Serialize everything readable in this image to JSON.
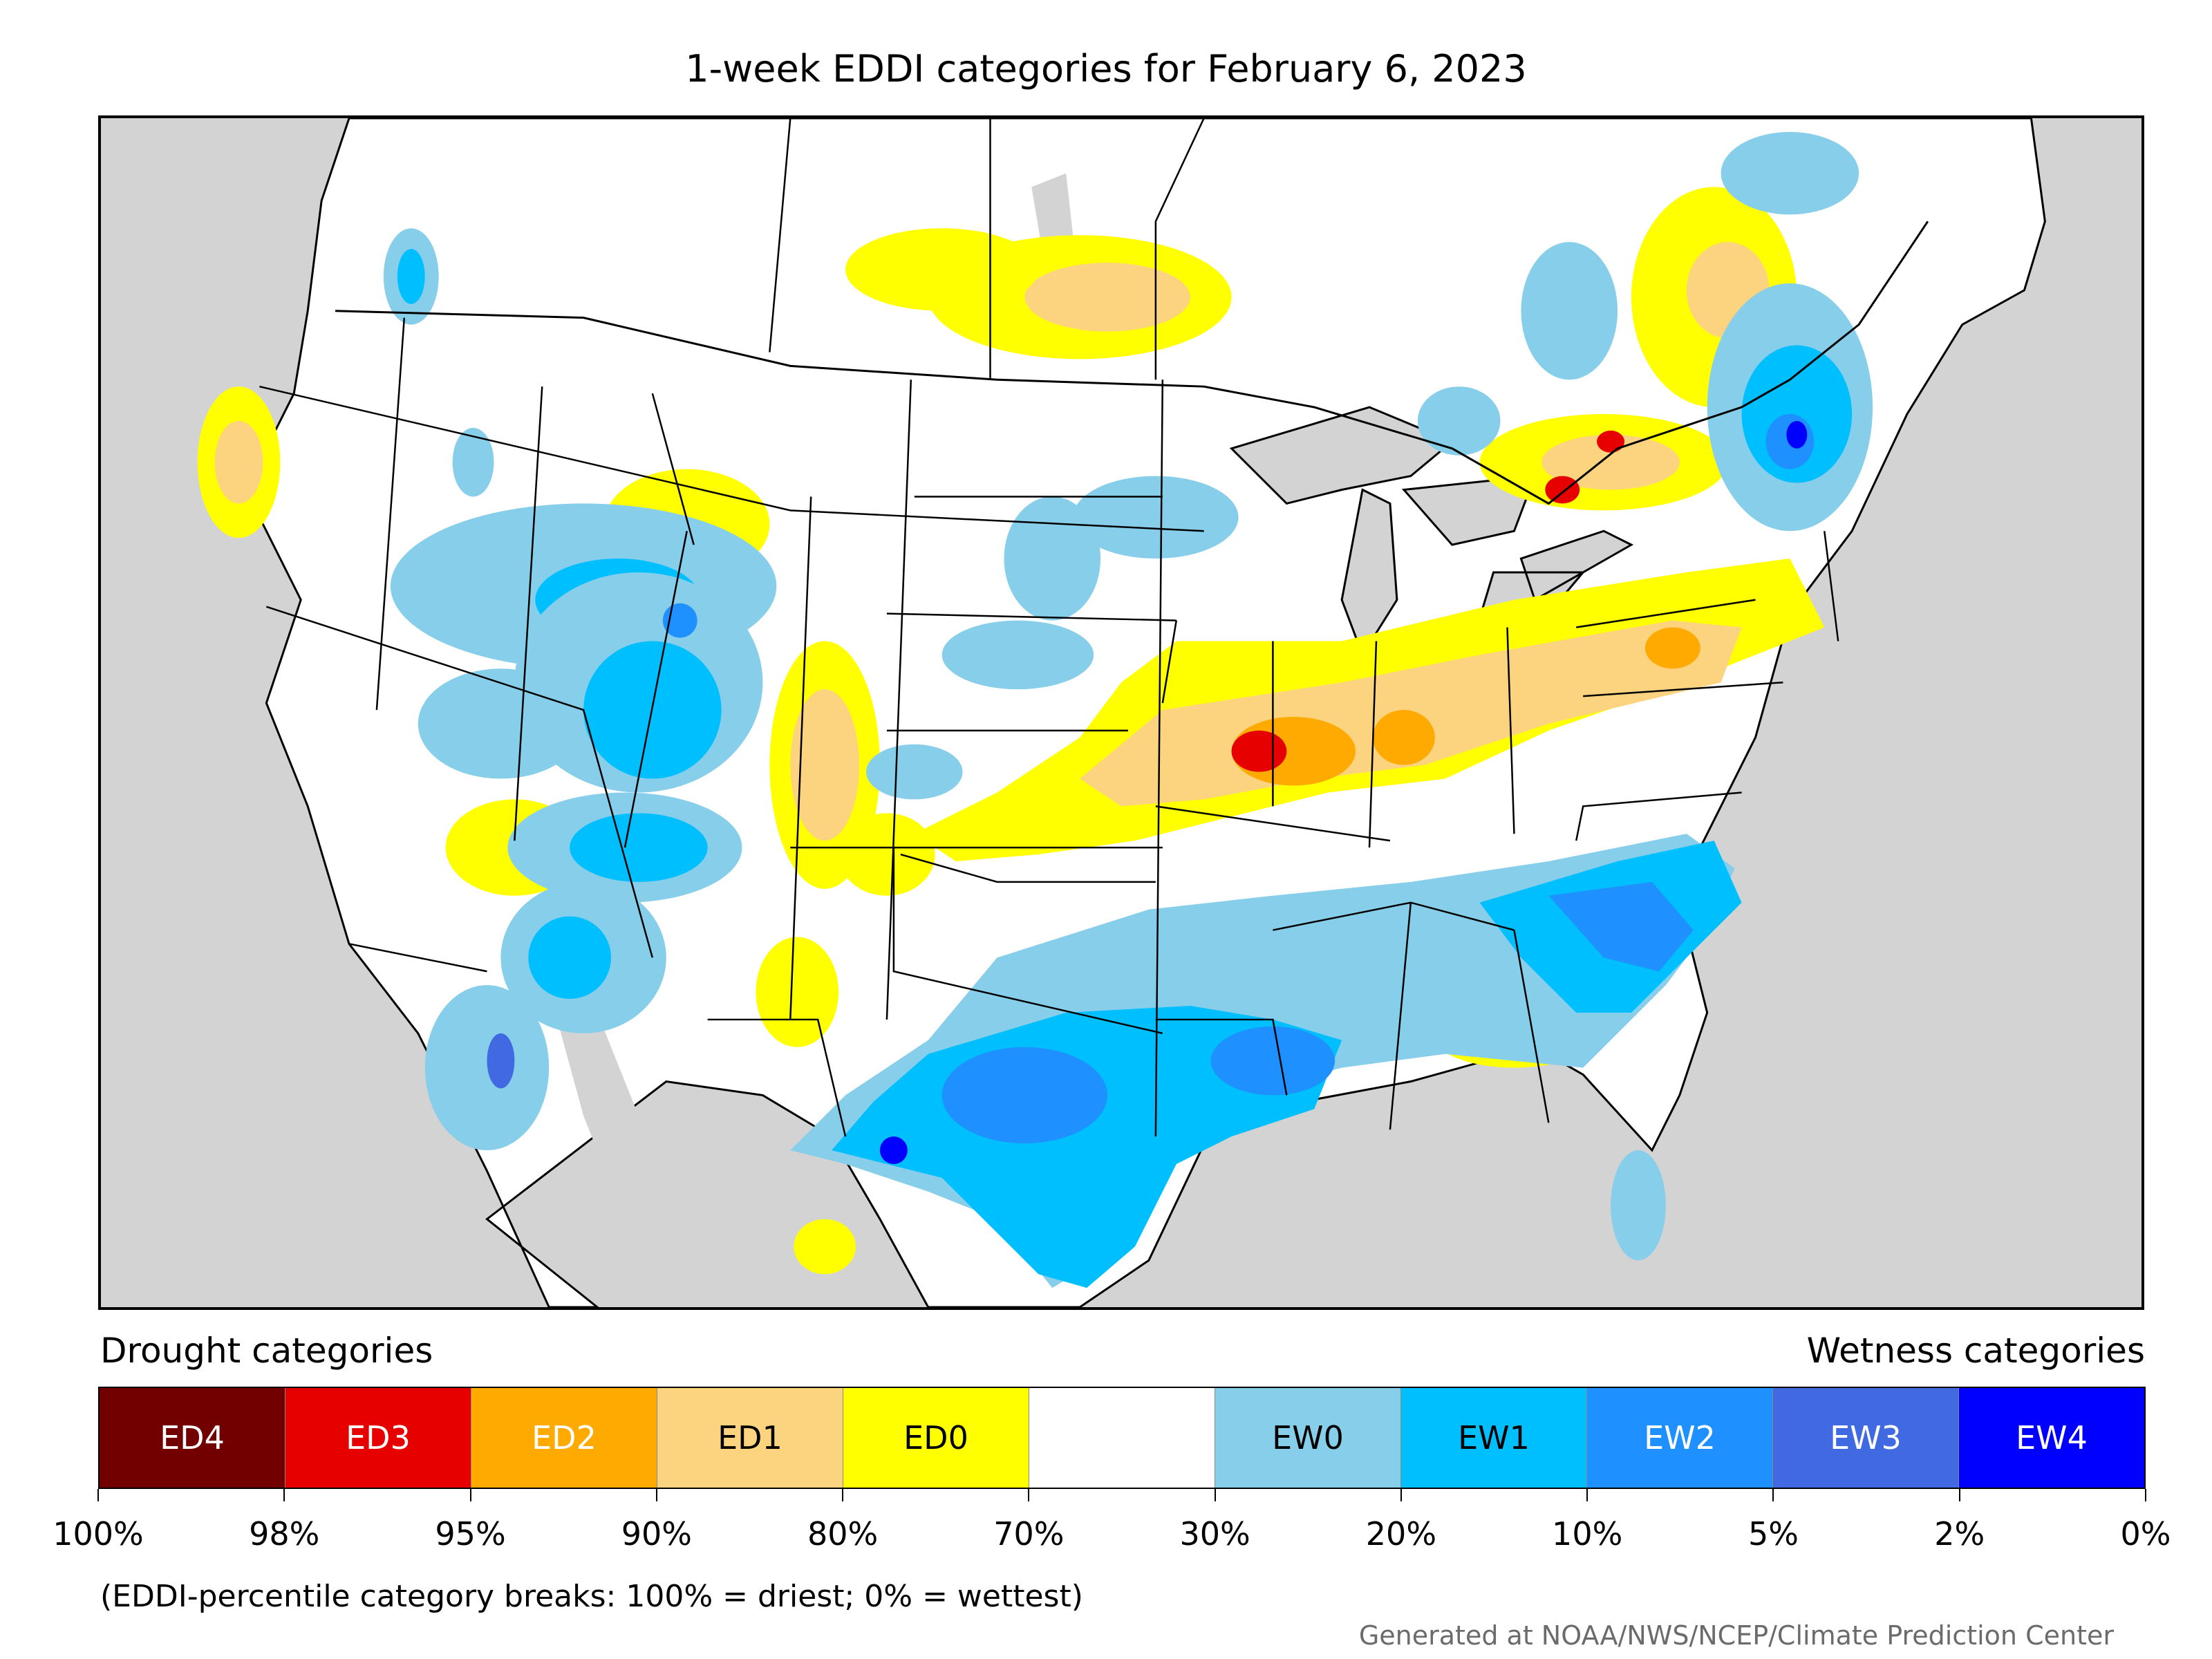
{
  "title": "1-week EDDI categories for February 6, 2023",
  "legend": {
    "drought_heading": "Drought categories",
    "wetness_heading": "Wetness categories",
    "categories": [
      {
        "label": "ED4",
        "color": "#730000",
        "text_color": "#ffffff"
      },
      {
        "label": "ED3",
        "color": "#e60000",
        "text_color": "#ffffff"
      },
      {
        "label": "ED2",
        "color": "#ffaa00",
        "text_color": "#ffffff"
      },
      {
        "label": "ED1",
        "color": "#fcd37f",
        "text_color": "#000000"
      },
      {
        "label": "ED0",
        "color": "#ffff00",
        "text_color": "#000000"
      },
      {
        "label": "",
        "color": "#ffffff",
        "text_color": "#000000"
      },
      {
        "label": "EW0",
        "color": "#87ceeb",
        "text_color": "#000000"
      },
      {
        "label": "EW1",
        "color": "#00bfff",
        "text_color": "#000000"
      },
      {
        "label": "EW2",
        "color": "#1e90ff",
        "text_color": "#ffffff"
      },
      {
        "label": "EW3",
        "color": "#4169e1",
        "text_color": "#ffffff"
      },
      {
        "label": "EW4",
        "color": "#0000ff",
        "text_color": "#ffffff"
      }
    ],
    "breaks": [
      "100%",
      "98%",
      "95%",
      "90%",
      "80%",
      "70%",
      "30%",
      "20%",
      "10%",
      "5%",
      "2%",
      "0%"
    ],
    "note": "(EDDI-percentile category breaks: 100% = driest; 0% = wettest)"
  },
  "credit": "Generated at NOAA/NWS/NCEP/Climate Prediction Center",
  "map": {
    "ocean_color": "#d3d3d3",
    "land_color": "#ffffff",
    "border_color": "#000000"
  }
}
